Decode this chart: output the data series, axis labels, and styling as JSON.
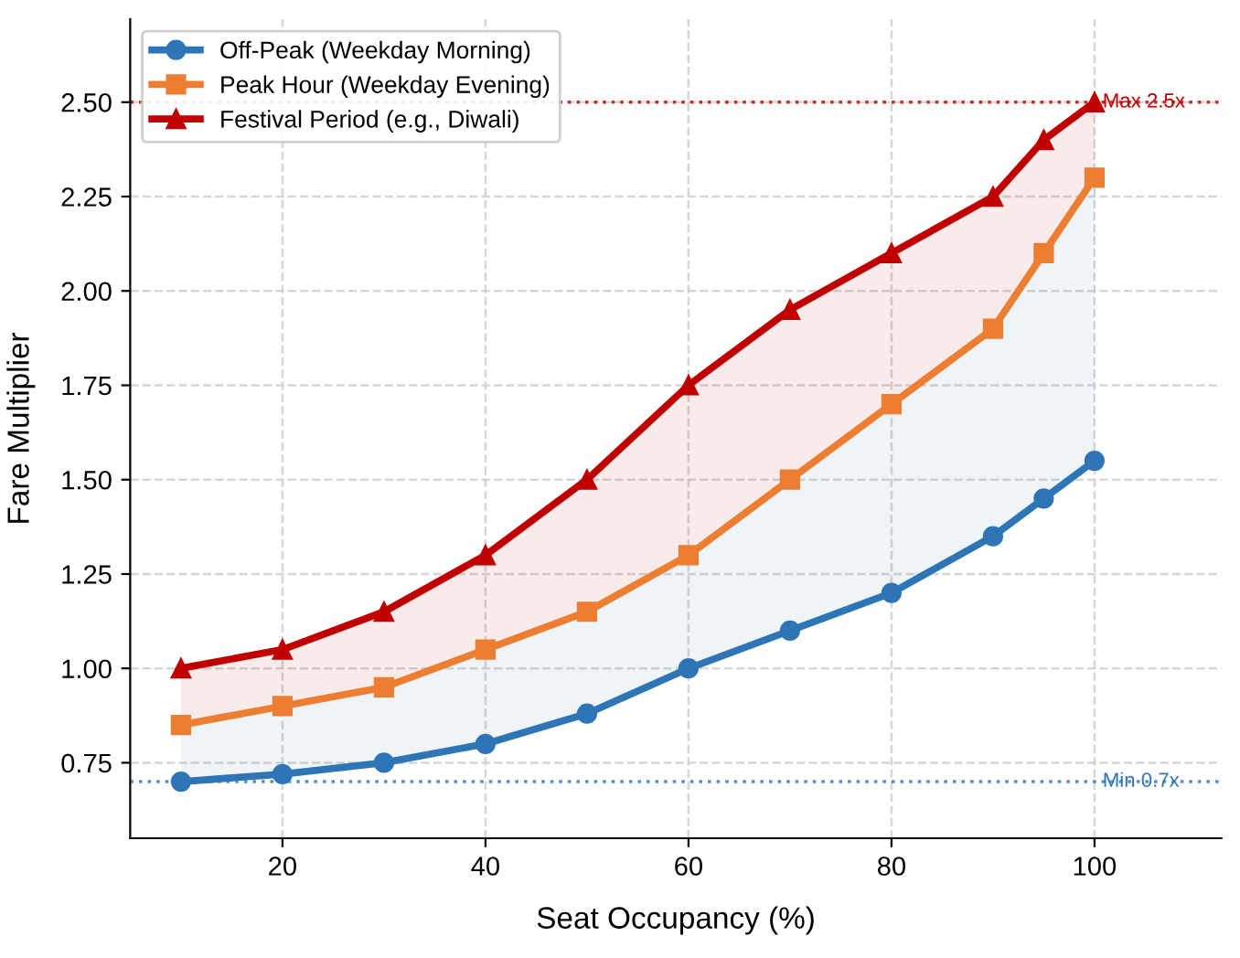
{
  "chart_data": {
    "type": "line",
    "xlabel": "Seat Occupancy (%)",
    "ylabel": "Fare Multiplier",
    "x": [
      10,
      20,
      30,
      40,
      50,
      60,
      70,
      80,
      90,
      95,
      100
    ],
    "series": [
      {
        "name": "Off-Peak (Weekday Morning)",
        "color": "#2e75b6",
        "marker": "circle",
        "values": [
          0.7,
          0.72,
          0.75,
          0.8,
          0.88,
          1.0,
          1.1,
          1.2,
          1.35,
          1.45,
          1.55
        ],
        "lower": [
          0.7,
          0.72,
          0.75,
          0.8,
          0.88,
          1.0,
          1.1,
          1.2,
          1.35,
          1.45,
          1.55
        ],
        "upper": [
          0.85,
          0.9,
          0.95,
          1.05,
          1.15,
          1.3,
          1.5,
          1.7,
          1.9,
          2.1,
          2.3
        ]
      },
      {
        "name": "Peak Hour (Weekday Evening)",
        "color": "#ed7d31",
        "marker": "square",
        "values": [
          0.85,
          0.9,
          0.95,
          1.05,
          1.15,
          1.3,
          1.5,
          1.7,
          1.9,
          2.1,
          2.3
        ]
      },
      {
        "name": "Festival Period (e.g., Diwali)",
        "color": "#c00000",
        "marker": "triangle",
        "values": [
          1.0,
          1.05,
          1.15,
          1.3,
          1.5,
          1.75,
          1.95,
          2.1,
          2.25,
          2.4,
          2.5
        ],
        "lower": [
          0.85,
          0.9,
          0.95,
          1.05,
          1.15,
          1.3,
          1.5,
          1.7,
          1.9,
          2.1,
          2.3
        ],
        "upper": [
          1.0,
          1.05,
          1.15,
          1.3,
          1.5,
          1.75,
          1.95,
          2.1,
          2.25,
          2.4,
          2.5
        ]
      }
    ],
    "ref_lines": [
      {
        "axis": "y",
        "value": 2.5,
        "label": "Max 2.5x",
        "color": "#c00000",
        "line_style": "dotted"
      },
      {
        "axis": "y",
        "value": 0.7,
        "label": "Min 0.7x",
        "color": "#2e75b6",
        "line_style": "dotted"
      }
    ],
    "xlim": [
      5,
      112.5
    ],
    "xticks": [
      20,
      40,
      60,
      80,
      100
    ],
    "ylim": [
      0.55,
      2.72
    ],
    "yticks": [
      {
        "value": 0.75,
        "label": "0.75"
      },
      {
        "value": 1.0,
        "label": "1.00"
      },
      {
        "value": 1.25,
        "label": "1.25"
      },
      {
        "value": 1.5,
        "label": "1.50"
      },
      {
        "value": 1.75,
        "label": "1.75"
      },
      {
        "value": 2.0,
        "label": "2.00"
      },
      {
        "value": 2.25,
        "label": "2.25"
      },
      {
        "value": 2.5,
        "label": "2.50"
      }
    ],
    "grid": true,
    "legend": "top left",
    "line_style": "solid"
  }
}
